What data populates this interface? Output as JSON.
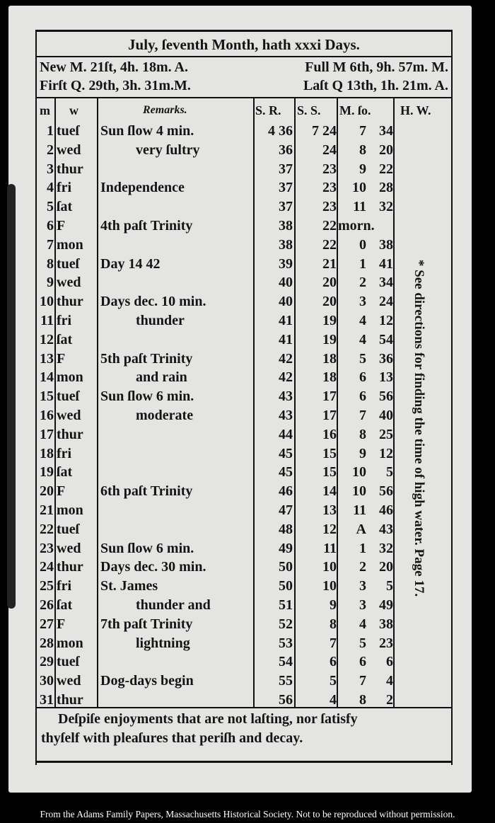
{
  "title": "July, ſeventh Month, hath xxxi Days.",
  "moon_phases": [
    [
      "New M. 21ſt, 4h. 18m. A.",
      "Full M  6th, 9h. 57m. M."
    ],
    [
      "Firſt Q. 29th, 3h. 31m.M.",
      "Laſt Q 13th, 1h. 21m. A."
    ]
  ],
  "columns": {
    "m": "m",
    "w": "w",
    "remarks": "Remarks.",
    "sr": "S. R.",
    "ss": "S. S.",
    "mso": "M. ſo.",
    "hw": "H. W."
  },
  "rows": [
    {
      "d": "1",
      "w": "tueſ",
      "rem": "Sun ſlow 4 min.",
      "sr": "4 36",
      "ss": "7 24",
      "mh": "7",
      "mm": "34"
    },
    {
      "d": "2",
      "w": "wed",
      "rem": "very ſultry",
      "sr": "36",
      "ss": "24",
      "mh": "8",
      "mm": "20"
    },
    {
      "d": "3",
      "w": "thur",
      "rem": "",
      "sr": "37",
      "ss": "23",
      "mh": "9",
      "mm": "22"
    },
    {
      "d": "4",
      "w": "fri",
      "rem": "Independence",
      "sr": "37",
      "ss": "23",
      "mh": "10",
      "mm": "28"
    },
    {
      "d": "5",
      "w": "ſat",
      "rem": "",
      "sr": "37",
      "ss": "23",
      "mh": "11",
      "mm": "32"
    },
    {
      "d": "6",
      "w": "F",
      "rem": "4th paſt Trinity",
      "sr": "38",
      "ss": "22",
      "mh": "morn.",
      "mm": ""
    },
    {
      "d": "7",
      "w": "mon",
      "rem": "",
      "sr": "38",
      "ss": "22",
      "mh": "0",
      "mm": "38"
    },
    {
      "d": "8",
      "w": "tueſ",
      "rem": "Day 14 42",
      "sr": "39",
      "ss": "21",
      "mh": "1",
      "mm": "41"
    },
    {
      "d": "9",
      "w": "wed",
      "rem": "",
      "sr": "40",
      "ss": "20",
      "mh": "2",
      "mm": "34"
    },
    {
      "d": "10",
      "w": "thur",
      "rem": "Days dec. 10 min.",
      "sr": "40",
      "ss": "20",
      "mh": "3",
      "mm": "24"
    },
    {
      "d": "11",
      "w": "fri",
      "rem": "thunder",
      "sr": "41",
      "ss": "19",
      "mh": "4",
      "mm": "12"
    },
    {
      "d": "12",
      "w": "ſat",
      "rem": "",
      "sr": "41",
      "ss": "19",
      "mh": "4",
      "mm": "54"
    },
    {
      "d": "13",
      "w": "F",
      "rem": "5th paſt Trinity",
      "sr": "42",
      "ss": "18",
      "mh": "5",
      "mm": "36"
    },
    {
      "d": "14",
      "w": "mon",
      "rem": "and rain",
      "sr": "42",
      "ss": "18",
      "mh": "6",
      "mm": "13"
    },
    {
      "d": "15",
      "w": "tueſ",
      "rem": "Sun ſlow 6 min.",
      "sr": "43",
      "ss": "17",
      "mh": "6",
      "mm": "56"
    },
    {
      "d": "16",
      "w": "wed",
      "rem": "moderate",
      "sr": "43",
      "ss": "17",
      "mh": "7",
      "mm": "40"
    },
    {
      "d": "17",
      "w": "thur",
      "rem": "",
      "sr": "44",
      "ss": "16",
      "mh": "8",
      "mm": "25"
    },
    {
      "d": "18",
      "w": "fri",
      "rem": "",
      "sr": "45",
      "ss": "15",
      "mh": "9",
      "mm": "12"
    },
    {
      "d": "19",
      "w": "ſat",
      "rem": "",
      "sr": "45",
      "ss": "15",
      "mh": "10",
      "mm": "5"
    },
    {
      "d": "20",
      "w": "F",
      "rem": "6th paſt Trinity",
      "sr": "46",
      "ss": "14",
      "mh": "10",
      "mm": "56"
    },
    {
      "d": "21",
      "w": "mon",
      "rem": "",
      "sr": "47",
      "ss": "13",
      "mh": "11",
      "mm": "46"
    },
    {
      "d": "22",
      "w": "tueſ",
      "rem": "",
      "sr": "48",
      "ss": "12",
      "mh": "A",
      "mm": "43"
    },
    {
      "d": "23",
      "w": "wed",
      "rem": "Sun ſlow 6 min.",
      "sr": "49",
      "ss": "11",
      "mh": "1",
      "mm": "32"
    },
    {
      "d": "24",
      "w": "thur",
      "rem": "Days dec. 30 min.",
      "sr": "50",
      "ss": "10",
      "mh": "2",
      "mm": "20"
    },
    {
      "d": "25",
      "w": "fri",
      "rem": "St. James",
      "sr": "50",
      "ss": "10",
      "mh": "3",
      "mm": "5"
    },
    {
      "d": "26",
      "w": "ſat",
      "rem": "thunder and",
      "sr": "51",
      "ss": "9",
      "mh": "3",
      "mm": "49"
    },
    {
      "d": "27",
      "w": "F",
      "rem": "7th paſt Trinity",
      "sr": "52",
      "ss": "8",
      "mh": "4",
      "mm": "38"
    },
    {
      "d": "28",
      "w": "mon",
      "rem": "lightning",
      "sr": "53",
      "ss": "7",
      "mh": "5",
      "mm": "23"
    },
    {
      "d": "29",
      "w": "tueſ",
      "rem": "",
      "sr": "54",
      "ss": "6",
      "mh": "6",
      "mm": "6"
    },
    {
      "d": "30",
      "w": "wed",
      "rem": "Dog-days begin",
      "sr": "55",
      "ss": "5",
      "mh": "7",
      "mm": "4"
    },
    {
      "d": "31",
      "w": "thur",
      "rem": "",
      "sr": "56",
      "ss": "4",
      "mh": "8",
      "mm": "2"
    }
  ],
  "high_water_note": "* See directions for finding the time of high water.  Page 17.",
  "motto": [
    "Deſpiſe enjoyments that are not laſting, nor ſatisfy",
    "thyſelf with pleaſures that periſh and decay."
  ],
  "credit": "From the Adams Family Papers, Massachusetts Historical Society. Not to be reproduced without permission."
}
